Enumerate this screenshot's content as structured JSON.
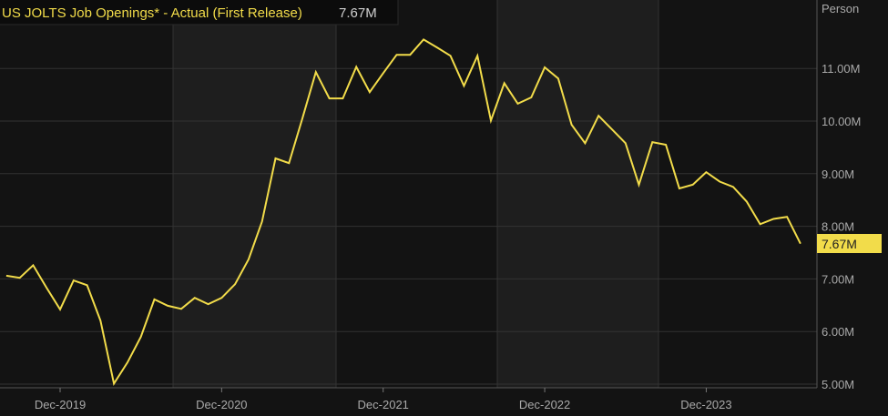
{
  "chart_data": {
    "type": "line",
    "title": "US JOLTS Job Openings* - Actual (First Release)",
    "last_value_label": "7.67M",
    "unit_label": "Person",
    "line_color": "#f2dc4a",
    "background_color": "#131313",
    "alternate_band_color": "#1e1e1e",
    "grid": true,
    "legend_placement": "top-left",
    "y_axis_side": "right",
    "ylim": [
      5,
      11.7
    ],
    "y_ticks": [
      5,
      6,
      7,
      8,
      9,
      10,
      11
    ],
    "y_tick_labels": [
      "5.00M",
      "6.00M",
      "7.00M",
      "8.00M",
      "9.00M",
      "10.00M",
      "11.00M"
    ],
    "x_tick_labels": [
      "Dec-2019",
      "Dec-2020",
      "Dec-2021",
      "Dec-2022",
      "Dec-2023"
    ],
    "x": [
      "2019-08",
      "2019-09",
      "2019-10",
      "2019-11",
      "2019-12",
      "2020-01",
      "2020-02",
      "2020-03",
      "2020-04",
      "2020-05",
      "2020-06",
      "2020-07",
      "2020-08",
      "2020-09",
      "2020-10",
      "2020-11",
      "2020-12",
      "2021-01",
      "2021-02",
      "2021-03",
      "2021-04",
      "2021-05",
      "2021-06",
      "2021-07",
      "2021-08",
      "2021-09",
      "2021-10",
      "2021-11",
      "2021-12",
      "2022-01",
      "2022-02",
      "2022-03",
      "2022-04",
      "2022-05",
      "2022-06",
      "2022-07",
      "2022-08",
      "2022-09",
      "2022-10",
      "2022-11",
      "2022-12",
      "2023-01",
      "2023-02",
      "2023-03",
      "2023-04",
      "2023-05",
      "2023-06",
      "2023-07",
      "2023-08",
      "2023-09",
      "2023-10",
      "2023-11",
      "2023-12",
      "2024-01",
      "2024-02",
      "2024-03",
      "2024-04",
      "2024-05",
      "2024-06",
      "2024-07"
    ],
    "series": [
      {
        "values": [
          7.06,
          7.02,
          7.26,
          6.83,
          6.42,
          6.97,
          6.88,
          6.21,
          5.01,
          5.41,
          5.9,
          6.61,
          6.49,
          6.43,
          6.64,
          6.52,
          6.64,
          6.9,
          7.37,
          8.09,
          9.29,
          9.2,
          10.05,
          10.93,
          10.43,
          10.43,
          11.03,
          10.55,
          10.91,
          11.26,
          11.26,
          11.55,
          11.4,
          11.24,
          10.67,
          11.24,
          10.01,
          10.72,
          10.33,
          10.45,
          11.02,
          10.81,
          9.93,
          9.58,
          10.1,
          9.84,
          9.58,
          8.79,
          9.6,
          9.55,
          8.72,
          8.79,
          9.03,
          8.85,
          8.75,
          8.47,
          8.04,
          8.14,
          8.18,
          7.67
        ]
      }
    ]
  }
}
